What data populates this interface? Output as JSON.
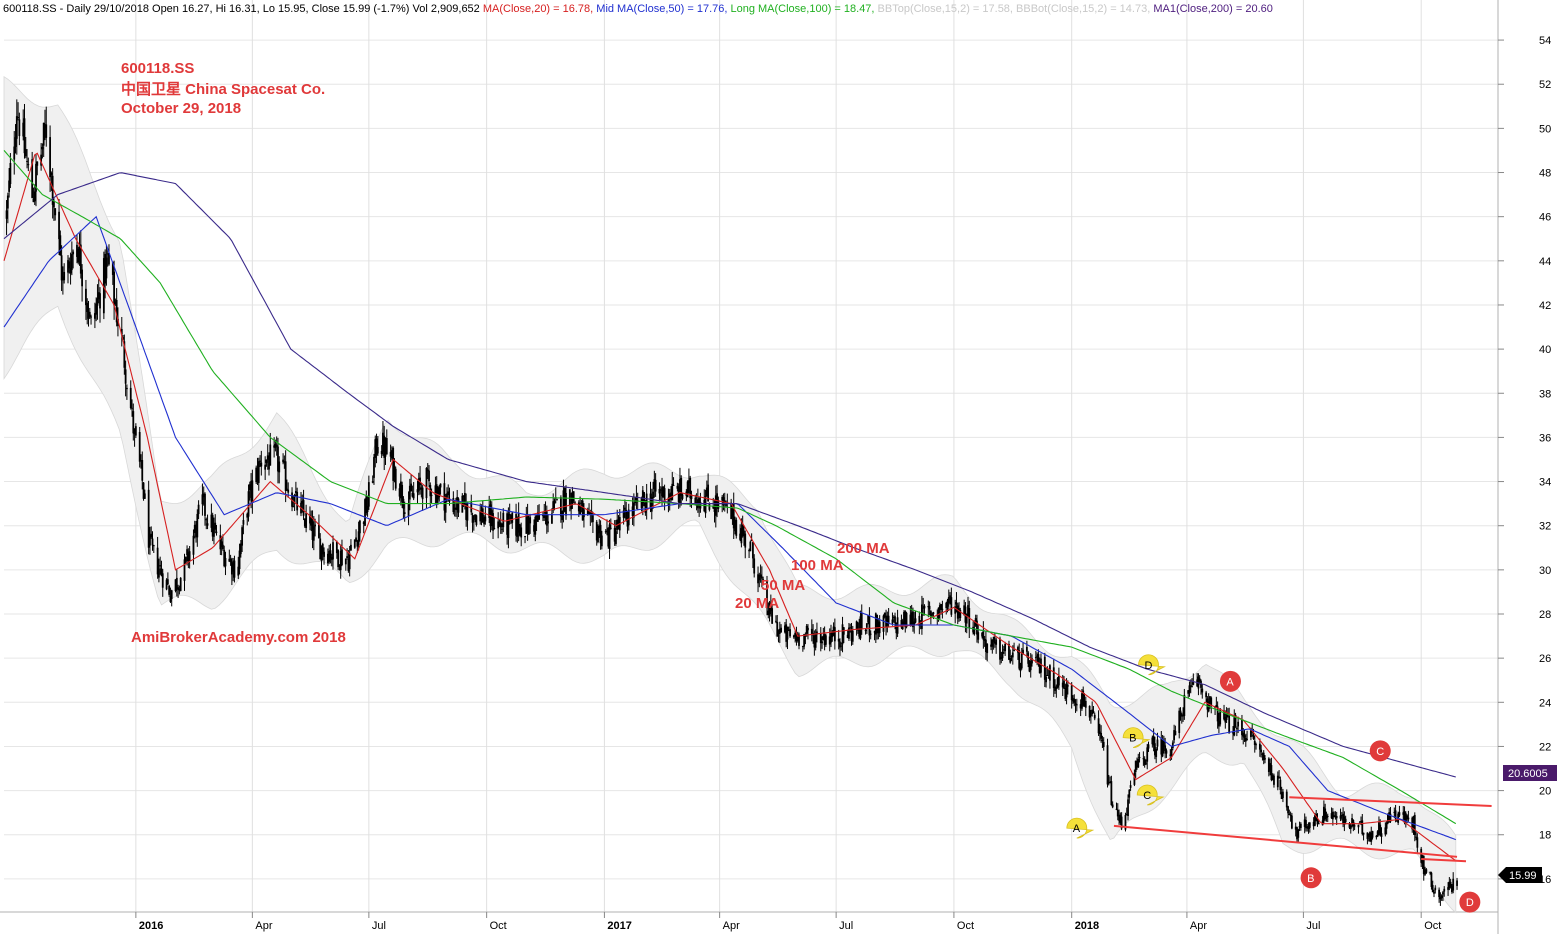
{
  "header": {
    "ticker_info": "600118.SS - Daily 29/10/2018 Open 16.27, Hi 16.31, Lo 15.95, Close 15.99 (-1.7%) Vol 2,909,652",
    "indicators": [
      {
        "text": "MA(Close,20) = 16.78,",
        "color": "#d62020"
      },
      {
        "text": "Mid MA(Close,50) = 17.76,",
        "color": "#2030d0"
      },
      {
        "text": "Long MA(Close,100) = 18.47,",
        "color": "#20b020"
      },
      {
        "text": "BBTop(Close,15,2) = 17.58,",
        "color": "#c8c8c8"
      },
      {
        "text": "BBBot(Close,15,2) = 14.73,",
        "color": "#c8c8c8"
      },
      {
        "text": "MA1(Close,200) = 20.60",
        "color": "#502080"
      }
    ]
  },
  "title_block": {
    "line1": "600118.SS",
    "line2": "中国卫星  China Spacesat Co.",
    "line3": "October 29, 2018"
  },
  "watermark": "AmiBrokerAcademy.com  2018",
  "annotations": {
    "ma20": "20 MA",
    "ma50": "50 MA",
    "ma100": "100 MA",
    "ma200": "200 MA"
  },
  "price_badges": {
    "ma200_value": "20.6005",
    "close_value": "15.99"
  },
  "colors": {
    "ma20": "#d62020",
    "ma50": "#2030d0",
    "ma100": "#20b020",
    "ma200": "#3a2a8a",
    "bollinger_band": "#d8d8d8",
    "trendline": "#f03c3c",
    "pattern_yellow": "#f5e03a",
    "pattern_red": "#e03a3a",
    "annotation_text": "#e0393a"
  },
  "chart_data": {
    "type": "candlestick",
    "y_axis": {
      "range": [
        14.5,
        55
      ],
      "ticks": [
        16,
        18,
        20,
        22,
        24,
        26,
        28,
        30,
        32,
        34,
        36,
        38,
        40,
        42,
        44,
        46,
        48,
        50,
        52,
        54
      ],
      "position": "right"
    },
    "x_axis": {
      "labels": [
        "2016",
        "Apr",
        "Jul",
        "Oct",
        "2017",
        "Apr",
        "Jul",
        "Oct",
        "2018",
        "Apr",
        "Jul",
        "Oct"
      ],
      "bold_labels": [
        "2016",
        "2017",
        "2018"
      ],
      "label_dates": [
        "2016-01-01",
        "2016-04-01",
        "2016-07-01",
        "2016-10-01",
        "2017-01-01",
        "2017-04-01",
        "2017-07-01",
        "2017-10-01",
        "2018-01-01",
        "2018-04-01",
        "2018-07-01",
        "2018-10-01"
      ],
      "range": [
        "2015-09-20",
        "2018-11-30"
      ]
    },
    "grid": true,
    "close_path": [
      [
        "2015-09-22",
        46
      ],
      [
        "2015-09-30",
        51
      ],
      [
        "2015-10-12",
        47
      ],
      [
        "2015-10-23",
        50
      ],
      [
        "2015-11-05",
        43
      ],
      [
        "2015-11-16",
        45
      ],
      [
        "2015-11-27",
        41
      ],
      [
        "2015-12-10",
        44
      ],
      [
        "2015-12-22",
        40
      ],
      [
        "2015-12-31",
        36
      ],
      [
        "2016-01-06",
        34
      ],
      [
        "2016-01-12",
        31
      ],
      [
        "2016-01-20",
        30
      ],
      [
        "2016-01-28",
        29
      ],
      [
        "2016-02-08",
        30
      ],
      [
        "2016-02-22",
        33
      ],
      [
        "2016-03-07",
        31
      ],
      [
        "2016-03-20",
        30
      ],
      [
        "2016-03-28",
        33
      ],
      [
        "2016-04-08",
        35
      ],
      [
        "2016-04-20",
        35
      ],
      [
        "2016-05-05",
        33
      ],
      [
        "2016-05-25",
        31
      ],
      [
        "2016-06-15",
        30.5
      ],
      [
        "2016-06-30",
        33
      ],
      [
        "2016-07-08",
        36
      ],
      [
        "2016-07-18",
        35
      ],
      [
        "2016-07-30",
        33
      ],
      [
        "2016-08-15",
        34
      ],
      [
        "2016-09-05",
        33
      ],
      [
        "2016-09-26",
        32.5
      ],
      [
        "2016-10-12",
        32
      ],
      [
        "2016-11-02",
        32
      ],
      [
        "2016-11-20",
        32.5
      ],
      [
        "2016-12-05",
        33.5
      ],
      [
        "2016-12-20",
        32
      ],
      [
        "2017-01-05",
        31.5
      ],
      [
        "2017-01-20",
        32.5
      ],
      [
        "2017-02-10",
        33.5
      ],
      [
        "2017-03-10",
        33.5
      ],
      [
        "2017-03-30",
        33
      ],
      [
        "2017-04-10",
        32.5
      ],
      [
        "2017-04-25",
        31
      ],
      [
        "2017-05-10",
        28
      ],
      [
        "2017-05-20",
        27
      ],
      [
        "2017-06-08",
        27
      ],
      [
        "2017-07-05",
        27
      ],
      [
        "2017-07-25",
        27.5
      ],
      [
        "2017-08-15",
        27.5
      ],
      [
        "2017-09-10",
        28
      ],
      [
        "2017-09-28",
        28.5
      ],
      [
        "2017-10-12",
        28
      ],
      [
        "2017-10-28",
        26.5
      ],
      [
        "2017-11-20",
        26
      ],
      [
        "2017-12-10",
        25.5
      ],
      [
        "2017-12-28",
        24.5
      ],
      [
        "2018-01-12",
        24
      ],
      [
        "2018-01-25",
        22
      ],
      [
        "2018-02-03",
        19
      ],
      [
        "2018-02-10",
        18.5
      ],
      [
        "2018-02-20",
        21
      ],
      [
        "2018-03-05",
        22
      ],
      [
        "2018-03-20",
        22
      ],
      [
        "2018-03-30",
        24
      ],
      [
        "2018-04-10",
        25
      ],
      [
        "2018-04-22",
        23.5
      ],
      [
        "2018-05-05",
        23
      ],
      [
        "2018-05-20",
        22.5
      ],
      [
        "2018-06-05",
        21
      ],
      [
        "2018-06-18",
        19.5
      ],
      [
        "2018-06-25",
        18
      ],
      [
        "2018-07-05",
        18.5
      ],
      [
        "2018-07-20",
        19
      ],
      [
        "2018-08-05",
        18.5
      ],
      [
        "2018-08-25",
        18
      ],
      [
        "2018-09-10",
        19
      ],
      [
        "2018-09-25",
        18.5
      ],
      [
        "2018-10-03",
        16.5
      ],
      [
        "2018-10-15",
        15.2
      ],
      [
        "2018-10-29",
        15.99
      ]
    ],
    "bollinger_band": {
      "upper": [
        [
          "2015-09-20",
          52
        ],
        [
          "2015-11-01",
          51
        ],
        [
          "2015-12-20",
          45
        ],
        [
          "2016-01-20",
          33
        ],
        [
          "2016-03-01",
          34
        ],
        [
          "2016-04-20",
          37
        ],
        [
          "2016-06-15",
          32
        ],
        [
          "2016-07-15",
          37
        ],
        [
          "2016-09-01",
          35
        ],
        [
          "2016-11-01",
          33.5
        ],
        [
          "2017-01-01",
          34.5
        ],
        [
          "2017-03-15",
          34.5
        ],
        [
          "2017-05-01",
          33
        ],
        [
          "2017-06-01",
          29
        ],
        [
          "2017-08-01",
          29
        ],
        [
          "2017-10-01",
          29.5
        ],
        [
          "2017-11-15",
          27.5
        ],
        [
          "2018-01-01",
          26
        ],
        [
          "2018-02-01",
          24
        ],
        [
          "2018-03-15",
          24.5
        ],
        [
          "2018-04-15",
          26
        ],
        [
          "2018-05-15",
          24
        ],
        [
          "2018-06-15",
          22.5
        ],
        [
          "2018-08-01",
          20
        ],
        [
          "2018-09-25",
          20
        ],
        [
          "2018-10-29",
          17.6
        ]
      ],
      "lower": [
        [
          "2015-09-20",
          39
        ],
        [
          "2015-11-01",
          42
        ],
        [
          "2015-12-20",
          36
        ],
        [
          "2016-01-20",
          28.5
        ],
        [
          "2016-03-01",
          28.5
        ],
        [
          "2016-04-20",
          31
        ],
        [
          "2016-06-15",
          29.5
        ],
        [
          "2016-07-15",
          31
        ],
        [
          "2016-09-01",
          31.5
        ],
        [
          "2016-11-01",
          31
        ],
        [
          "2017-01-01",
          30.5
        ],
        [
          "2017-03-15",
          32
        ],
        [
          "2017-05-01",
          28
        ],
        [
          "2017-06-01",
          25.5
        ],
        [
          "2017-08-01",
          26
        ],
        [
          "2017-10-01",
          26.5
        ],
        [
          "2017-11-15",
          25
        ],
        [
          "2018-01-01",
          22
        ],
        [
          "2018-02-01",
          17.5
        ],
        [
          "2018-03-15",
          20
        ],
        [
          "2018-04-15",
          21.5
        ],
        [
          "2018-05-15",
          21.5
        ],
        [
          "2018-06-15",
          17.5
        ],
        [
          "2018-08-01",
          17.5
        ],
        [
          "2018-09-25",
          17
        ],
        [
          "2018-10-29",
          14.7
        ]
      ]
    },
    "series": [
      {
        "name": "MA(Close,20)",
        "color_key": "ma20",
        "values": [
          [
            "2015-09-20",
            44
          ],
          [
            "2015-10-15",
            49
          ],
          [
            "2015-11-15",
            45
          ],
          [
            "2015-12-15",
            42
          ],
          [
            "2016-01-10",
            36
          ],
          [
            "2016-02-01",
            30
          ],
          [
            "2016-03-01",
            31
          ],
          [
            "2016-04-15",
            34
          ],
          [
            "2016-05-15",
            32.5
          ],
          [
            "2016-06-20",
            30.5
          ],
          [
            "2016-07-20",
            35
          ],
          [
            "2016-08-20",
            33.5
          ],
          [
            "2016-10-15",
            32.2
          ],
          [
            "2016-12-10",
            33
          ],
          [
            "2017-01-10",
            32
          ],
          [
            "2017-03-01",
            33.5
          ],
          [
            "2017-04-10",
            33
          ],
          [
            "2017-05-10",
            30
          ],
          [
            "2017-06-01",
            27
          ],
          [
            "2017-07-15",
            27.3
          ],
          [
            "2017-09-01",
            27.5
          ],
          [
            "2017-10-01",
            28.3
          ],
          [
            "2017-11-15",
            26.5
          ],
          [
            "2017-12-20",
            25.3
          ],
          [
            "2018-01-20",
            24
          ],
          [
            "2018-02-20",
            20.5
          ],
          [
            "2018-03-20",
            21.5
          ],
          [
            "2018-04-15",
            24
          ],
          [
            "2018-05-15",
            23.2
          ],
          [
            "2018-06-15",
            21
          ],
          [
            "2018-07-15",
            18.5
          ],
          [
            "2018-08-15",
            18.5
          ],
          [
            "2018-09-15",
            18.7
          ],
          [
            "2018-10-29",
            16.78
          ]
        ]
      },
      {
        "name": "Mid MA(Close,50)",
        "color_key": "ma50",
        "values": [
          [
            "2015-09-20",
            41
          ],
          [
            "2015-10-25",
            44
          ],
          [
            "2015-12-01",
            46
          ],
          [
            "2016-01-01",
            41
          ],
          [
            "2016-02-01",
            36
          ],
          [
            "2016-03-10",
            32.5
          ],
          [
            "2016-04-20",
            33.5
          ],
          [
            "2016-06-01",
            33
          ],
          [
            "2016-07-15",
            32
          ],
          [
            "2016-09-01",
            33.2
          ],
          [
            "2016-11-01",
            32.5
          ],
          [
            "2017-01-01",
            32.5
          ],
          [
            "2017-03-01",
            33
          ],
          [
            "2017-04-15",
            33
          ],
          [
            "2017-05-20",
            31
          ],
          [
            "2017-07-01",
            28.5
          ],
          [
            "2017-08-15",
            27.5
          ],
          [
            "2017-10-01",
            27.5
          ],
          [
            "2017-11-15",
            27
          ],
          [
            "2018-01-01",
            25.5
          ],
          [
            "2018-02-15",
            23.5
          ],
          [
            "2018-03-20",
            22
          ],
          [
            "2018-04-20",
            22.5
          ],
          [
            "2018-05-20",
            22.8
          ],
          [
            "2018-06-20",
            22
          ],
          [
            "2018-07-20",
            20
          ],
          [
            "2018-09-01",
            19
          ],
          [
            "2018-10-29",
            17.76
          ]
        ]
      },
      {
        "name": "Long MA(Close,100)",
        "color_key": "ma100",
        "values": [
          [
            "2015-09-20",
            49
          ],
          [
            "2015-10-20",
            47
          ],
          [
            "2015-11-20",
            46
          ],
          [
            "2015-12-20",
            45
          ],
          [
            "2016-01-20",
            43
          ],
          [
            "2016-03-01",
            39
          ],
          [
            "2016-04-15",
            36
          ],
          [
            "2016-06-01",
            34
          ],
          [
            "2016-07-15",
            33
          ],
          [
            "2016-09-01",
            33
          ],
          [
            "2016-11-01",
            33.3
          ],
          [
            "2017-01-01",
            33.2
          ],
          [
            "2017-03-01",
            33
          ],
          [
            "2017-04-15",
            32.8
          ],
          [
            "2017-05-15",
            32
          ],
          [
            "2017-07-01",
            30.5
          ],
          [
            "2017-08-15",
            28.5
          ],
          [
            "2017-10-01",
            27.5
          ],
          [
            "2017-11-15",
            27
          ],
          [
            "2018-01-01",
            26.5
          ],
          [
            "2018-02-15",
            25.5
          ],
          [
            "2018-03-20",
            24.5
          ],
          [
            "2018-05-01",
            23.5
          ],
          [
            "2018-06-15",
            22.5
          ],
          [
            "2018-08-01",
            21.5
          ],
          [
            "2018-09-15",
            20
          ],
          [
            "2018-10-29",
            18.47
          ]
        ]
      },
      {
        "name": "MA1(Close,200)",
        "color_key": "ma200",
        "values": [
          [
            "2015-09-20",
            45
          ],
          [
            "2015-11-01",
            47
          ],
          [
            "2015-12-20",
            48
          ],
          [
            "2016-02-01",
            47.5
          ],
          [
            "2016-03-15",
            45
          ],
          [
            "2016-05-01",
            40
          ],
          [
            "2016-06-15",
            38
          ],
          [
            "2016-07-20",
            36.5
          ],
          [
            "2016-09-01",
            35
          ],
          [
            "2016-11-01",
            34
          ],
          [
            "2017-01-01",
            33.5
          ],
          [
            "2017-03-01",
            33
          ],
          [
            "2017-04-15",
            33
          ],
          [
            "2017-06-01",
            32
          ],
          [
            "2017-07-15",
            31
          ],
          [
            "2017-09-01",
            30
          ],
          [
            "2017-10-15",
            29
          ],
          [
            "2017-12-01",
            27.8
          ],
          [
            "2018-01-15",
            26.5
          ],
          [
            "2018-03-01",
            25.5
          ],
          [
            "2018-04-15",
            24.8
          ],
          [
            "2018-06-01",
            23.5
          ],
          [
            "2018-08-01",
            22
          ],
          [
            "2018-10-29",
            20.6
          ]
        ]
      }
    ],
    "trendlines": [
      {
        "from": [
          "2018-02-03",
          18.4
        ],
        "to": [
          "2018-10-29",
          17.0
        ]
      },
      {
        "from": [
          "2018-06-20",
          19.7
        ],
        "to": [
          "2018-11-25",
          19.3
        ]
      },
      {
        "from": [
          "2018-10-01",
          16.9
        ],
        "to": [
          "2018-11-05",
          16.8
        ]
      }
    ],
    "pattern_points": [
      {
        "label": "A",
        "style": "yellow",
        "date": "2018-01-05",
        "value": 18.3
      },
      {
        "label": "B",
        "style": "yellow",
        "date": "2018-02-18",
        "value": 22.4
      },
      {
        "label": "C",
        "style": "yellow",
        "date": "2018-03-01",
        "value": 19.8
      },
      {
        "label": "D",
        "style": "yellow",
        "date": "2018-03-02",
        "value": 25.7
      },
      {
        "label": "A",
        "style": "red",
        "date": "2018-05-05",
        "value": 24.95
      },
      {
        "label": "B",
        "style": "red",
        "date": "2018-07-07",
        "value": 16.05
      },
      {
        "label": "C",
        "style": "red",
        "date": "2018-08-30",
        "value": 21.8
      },
      {
        "label": "D",
        "style": "red",
        "date": "2018-11-08",
        "value": 14.95
      }
    ]
  }
}
